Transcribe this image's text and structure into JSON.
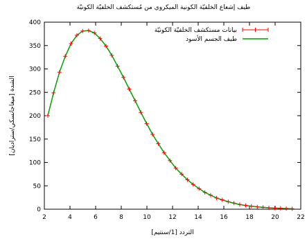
{
  "chart_data": {
    "type": "line",
    "title": "طيف إشعاع الخلفيّة الكونية الميكروي من مُستكشف الخلفيّة الكونيّة",
    "xlabel": "التردد [1/سنتيم]",
    "ylabel": "الشدة [ميغاجانسكي/ستراديان]",
    "xlim": [
      2,
      22
    ],
    "ylim": [
      0,
      400
    ],
    "x_ticks": [
      2,
      4,
      6,
      8,
      10,
      12,
      14,
      16,
      18,
      20,
      22
    ],
    "y_ticks": [
      0,
      50,
      100,
      150,
      200,
      250,
      300,
      350,
      400
    ],
    "grid": false,
    "legend_position": "top-right",
    "series": [
      {
        "name": "بيانات مستكشف الخلفيّة الكونيّة",
        "style": "points-with-errorbars",
        "color": "#ff0000",
        "x": [
          2.27,
          2.72,
          3.18,
          3.63,
          4.08,
          4.54,
          4.99,
          5.45,
          5.9,
          6.35,
          6.81,
          7.26,
          7.71,
          8.17,
          8.62,
          9.08,
          9.53,
          9.98,
          10.44,
          10.89,
          11.34,
          11.8,
          12.25,
          12.71,
          13.16,
          13.61,
          14.07,
          14.52,
          14.97,
          15.43,
          15.88,
          16.34,
          16.79,
          17.24,
          17.7,
          18.15,
          18.61,
          19.06,
          19.51,
          19.97,
          20.42,
          20.87,
          21.33
        ],
        "y": [
          200,
          249,
          293,
          327,
          354,
          372,
          381,
          382,
          377,
          365,
          349,
          329,
          306,
          282,
          257,
          232,
          207,
          183,
          160,
          140,
          121,
          104,
          88,
          75,
          63,
          53,
          44,
          36,
          30,
          24,
          20,
          16,
          13,
          10,
          8,
          6.5,
          5,
          4,
          3,
          2.4,
          1.9,
          1.5,
          1.1
        ]
      },
      {
        "name": "طيف الجسم الأسود",
        "style": "line",
        "color": "#00a000",
        "x": [
          2.27,
          2.72,
          3.18,
          3.63,
          4.08,
          4.54,
          4.99,
          5.45,
          5.9,
          6.35,
          6.81,
          7.26,
          7.71,
          8.17,
          8.62,
          9.08,
          9.53,
          9.98,
          10.44,
          10.89,
          11.34,
          11.8,
          12.25,
          12.71,
          13.16,
          13.61,
          14.07,
          14.52,
          14.97,
          15.43,
          15.88,
          16.34,
          16.79,
          17.24,
          17.7,
          18.15,
          18.61,
          19.06,
          19.51,
          19.97,
          20.42,
          20.87,
          21.33
        ],
        "y": [
          200,
          249,
          293,
          327,
          354,
          372,
          381,
          382,
          377,
          365,
          349,
          329,
          306,
          282,
          257,
          232,
          207,
          183,
          160,
          140,
          121,
          104,
          88,
          75,
          63,
          53,
          44,
          36,
          30,
          24,
          20,
          16,
          13,
          10,
          8,
          6.5,
          5,
          4,
          3,
          2.4,
          1.9,
          1.5,
          1.1
        ]
      }
    ]
  }
}
